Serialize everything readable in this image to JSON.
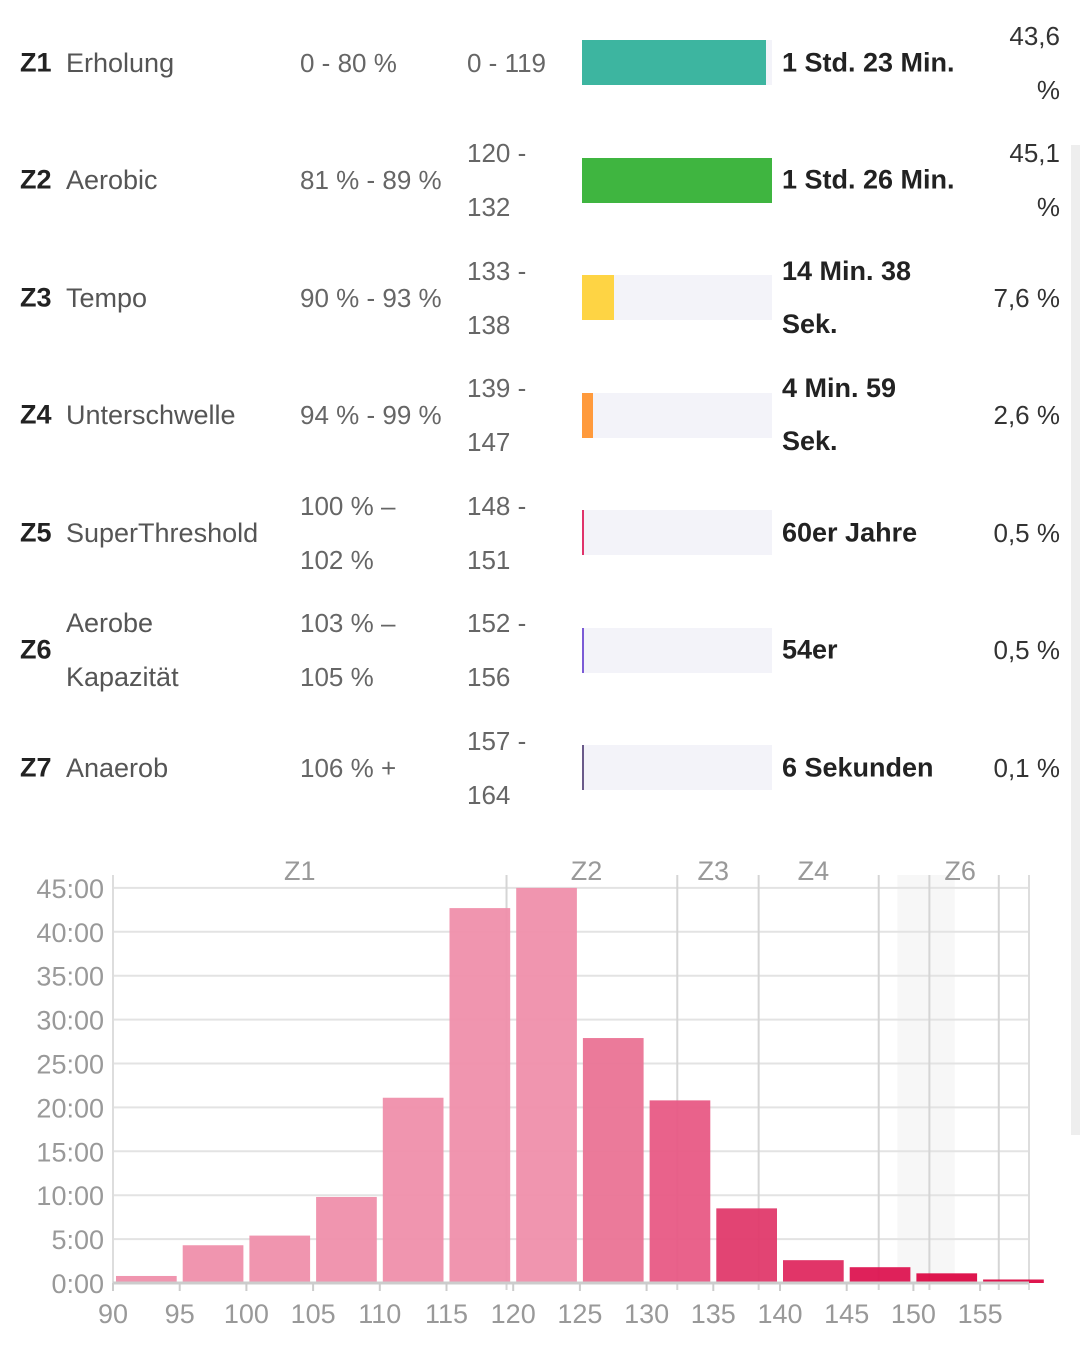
{
  "zones": [
    {
      "id": "Z1",
      "name": "Erholung",
      "pct": "0 - 80 %",
      "bpm": "0 - 119",
      "time": "1 Std. 23 Min.",
      "share": "43,6 %",
      "fraction": 0.97,
      "color": "#3db5a0"
    },
    {
      "id": "Z2",
      "name": "Aerobic",
      "pct": "81 % - 89 %",
      "bpm": "120 - 132",
      "time": "1 Std. 26 Min.",
      "share": "45,1 %",
      "fraction": 1.0,
      "color": "#3fb540"
    },
    {
      "id": "Z3",
      "name": "Tempo",
      "pct": "90 % - 93 %",
      "bpm": "133 - 138",
      "time": "14 Min. 38 Sek.",
      "share": "7,6 %",
      "fraction": 0.17,
      "color": "#fed444"
    },
    {
      "id": "Z4",
      "name": "Unterschwelle",
      "pct": "94 % - 99 %",
      "bpm": "139 - 147",
      "time": "4 Min. 59 Sek.",
      "share": "2,6 %",
      "fraction": 0.06,
      "color": "#ff9a3c"
    },
    {
      "id": "Z5",
      "name": "SuperThreshold",
      "pct": "100 % – 102 %",
      "bpm": "148 - 151",
      "time": "60er Jahre",
      "share": "0,5 %",
      "fraction": 0.012,
      "color": "#e0336b"
    },
    {
      "id": "Z6",
      "name": "Aerobe Kapazität",
      "pct": "103 % – 105 %",
      "bpm": "152 - 156",
      "time": "54er",
      "share": "0,5 %",
      "fraction": 0.012,
      "color": "#7b5bd6"
    },
    {
      "id": "Z7",
      "name": "Anaerob",
      "pct": "106 % +",
      "bpm": "157 - 164",
      "time": "6 Sekunden",
      "share": "0,1 %",
      "fraction": 0.006,
      "color": "#6a5a8a"
    }
  ],
  "chart_data": {
    "type": "bar",
    "xlabel": "",
    "ylabel": "",
    "bin_starts": [
      90,
      95,
      100,
      105,
      110,
      115,
      120,
      125,
      130,
      135,
      140,
      145,
      150,
      155
    ],
    "values_minutes": [
      0.8,
      4.3,
      5.4,
      9.8,
      21.1,
      42.7,
      45,
      27.9,
      20.8,
      8.5,
      2.6,
      1.8,
      1.1,
      0.4
    ],
    "xlim": [
      90,
      158.7
    ],
    "ylim": [
      0,
      45
    ],
    "x_ticks": [
      "90",
      "95",
      "100",
      "105",
      "110",
      "115",
      "120",
      "125",
      "130",
      "135",
      "140",
      "145",
      "150",
      "155"
    ],
    "y_ticks": [
      "0:00",
      "5:00",
      "10:00",
      "15:00",
      "20:00",
      "25:00",
      "30:00",
      "35:00",
      "40:00",
      "45:00"
    ],
    "zone_boundaries": [
      119.5,
      132.3,
      138.4,
      147.4,
      151.2,
      156.4
    ],
    "zone_labels": [
      {
        "label": "Z1",
        "x": 104
      },
      {
        "label": "Z2",
        "x": 125.5
      },
      {
        "label": "Z3",
        "x": 135
      },
      {
        "label": "Z4",
        "x": 142.5
      },
      {
        "label": "Z6",
        "x": 153.5
      }
    ],
    "highlight_range": [
      148.8,
      153.1
    ],
    "grid": true
  }
}
